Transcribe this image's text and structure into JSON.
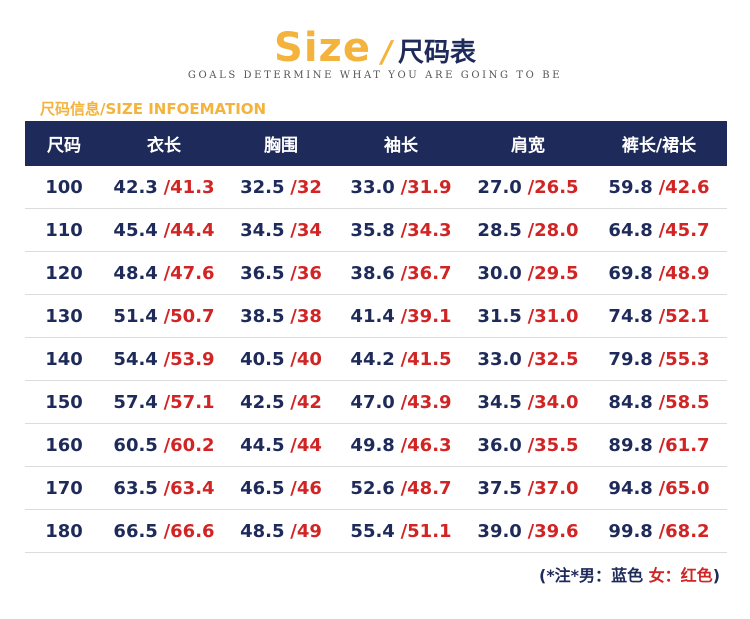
{
  "header": {
    "title_en": "Size",
    "title_slash": "/",
    "title_cn": "尺码表",
    "subtitle": "GOALS DETERMINE WHAT YOU ARE GOING TO BE"
  },
  "section_label": "尺码信息/SIZE INFOEMATION",
  "table": {
    "headers": [
      "尺码",
      "衣长",
      "胸围",
      "袖长",
      "肩宽",
      "裤长/裙长"
    ],
    "rows": [
      {
        "size": "100",
        "cells": [
          {
            "m": "42.3",
            "f": "/41.3"
          },
          {
            "m": "32.5",
            "f": "/32"
          },
          {
            "m": "33.0",
            "f": "/31.9"
          },
          {
            "m": "27.0",
            "f": "/26.5"
          },
          {
            "m": "59.8",
            "f": "/42.6"
          }
        ]
      },
      {
        "size": "110",
        "cells": [
          {
            "m": "45.4",
            "f": "/44.4"
          },
          {
            "m": "34.5",
            "f": "/34"
          },
          {
            "m": "35.8",
            "f": "/34.3"
          },
          {
            "m": "28.5",
            "f": "/28.0"
          },
          {
            "m": "64.8",
            "f": "/45.7"
          }
        ]
      },
      {
        "size": "120",
        "cells": [
          {
            "m": "48.4",
            "f": "/47.6"
          },
          {
            "m": "36.5",
            "f": "/36"
          },
          {
            "m": "38.6",
            "f": "/36.7"
          },
          {
            "m": "30.0",
            "f": "/29.5"
          },
          {
            "m": "69.8",
            "f": "/48.9"
          }
        ]
      },
      {
        "size": "130",
        "cells": [
          {
            "m": "51.4",
            "f": "/50.7"
          },
          {
            "m": "38.5",
            "f": "/38"
          },
          {
            "m": "41.4",
            "f": "/39.1"
          },
          {
            "m": "31.5",
            "f": "/31.0"
          },
          {
            "m": "74.8",
            "f": "/52.1"
          }
        ]
      },
      {
        "size": "140",
        "cells": [
          {
            "m": "54.4",
            "f": "/53.9"
          },
          {
            "m": "40.5",
            "f": "/40"
          },
          {
            "m": "44.2",
            "f": "/41.5"
          },
          {
            "m": "33.0",
            "f": "/32.5"
          },
          {
            "m": "79.8",
            "f": "/55.3"
          }
        ]
      },
      {
        "size": "150",
        "cells": [
          {
            "m": "57.4",
            "f": "/57.1"
          },
          {
            "m": "42.5",
            "f": "/42"
          },
          {
            "m": "47.0",
            "f": "/43.9"
          },
          {
            "m": "34.5",
            "f": "/34.0"
          },
          {
            "m": "84.8",
            "f": "/58.5"
          }
        ]
      },
      {
        "size": "160",
        "cells": [
          {
            "m": "60.5",
            "f": "/60.2"
          },
          {
            "m": "44.5",
            "f": "/44"
          },
          {
            "m": "49.8",
            "f": "/46.3"
          },
          {
            "m": "36.0",
            "f": "/35.5"
          },
          {
            "m": "89.8",
            "f": "/61.7"
          }
        ]
      },
      {
        "size": "170",
        "cells": [
          {
            "m": "63.5",
            "f": "/63.4"
          },
          {
            "m": "46.5",
            "f": "/46"
          },
          {
            "m": "52.6",
            "f": "/48.7"
          },
          {
            "m": "37.5",
            "f": "/37.0"
          },
          {
            "m": "94.8",
            "f": "/65.0"
          }
        ]
      },
      {
        "size": "180",
        "cells": [
          {
            "m": "66.5",
            "f": "/66.6"
          },
          {
            "m": "48.5",
            "f": "/49"
          },
          {
            "m": "55.4",
            "f": "/51.1"
          },
          {
            "m": "39.0",
            "f": "/39.6"
          },
          {
            "m": "99.8",
            "f": "/68.2"
          }
        ]
      }
    ]
  },
  "note": {
    "prefix": "(*注*男：",
    "male_color_label": "蓝色",
    "female_label": "女：",
    "female_color_label": "红色",
    "suffix": ")"
  },
  "colors": {
    "accent": "#f3b33d",
    "navy": "#1e2b5a",
    "red": "#d12424"
  }
}
